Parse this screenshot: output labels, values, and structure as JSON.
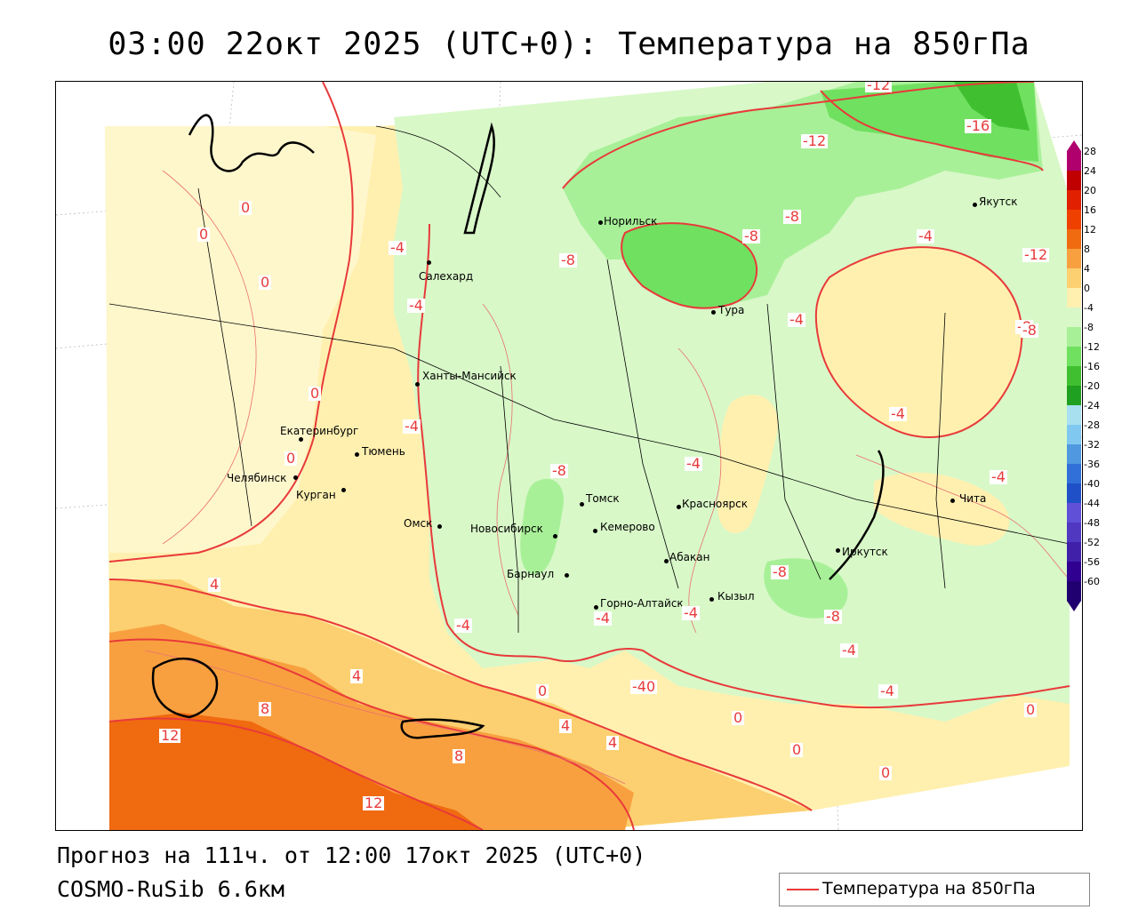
{
  "title": "03:00 22окт 2025 (UTC+0): Температура на 850гПа",
  "footer": {
    "forecast": "Прогноз на 111ч. от 12:00 17окт 2025 (UTC+0)",
    "model": "COSMO-RuSib 6.6км"
  },
  "legend": {
    "label": "Температура на 850гПа",
    "color": "#e83a3a"
  },
  "colorbar": {
    "labels": [
      "28",
      "24",
      "20",
      "16",
      "12",
      "8",
      "4",
      "0",
      "-4",
      "-8",
      "-12",
      "-16",
      "-20",
      "-24",
      "-28",
      "-32",
      "-36",
      "-40",
      "-44",
      "-48",
      "-52",
      "-56",
      "-60"
    ],
    "colors": [
      "#b0006e",
      "#c00000",
      "#e02000",
      "#f04000",
      "#f06a10",
      "#f8a040",
      "#fcd070",
      "#fff0b0",
      "#d8f8c8",
      "#a8f098",
      "#70e060",
      "#40c030",
      "#20a020",
      "#a8e0f0",
      "#80c8f0",
      "#5098e0",
      "#3070d8",
      "#2050c8",
      "#6050d8",
      "#5038c0",
      "#4020a8",
      "#300090",
      "#200070"
    ]
  },
  "cities": [
    {
      "name": "Норильск"
    },
    {
      "name": "Салехард"
    },
    {
      "name": "Тура"
    },
    {
      "name": "Якутск"
    },
    {
      "name": "Ханты-Мансийск"
    },
    {
      "name": "Екатеринбург"
    },
    {
      "name": "Тюмень"
    },
    {
      "name": "Челябинск"
    },
    {
      "name": "Курган"
    },
    {
      "name": "Омск"
    },
    {
      "name": "Томск"
    },
    {
      "name": "Новосибирск"
    },
    {
      "name": "Кемерово"
    },
    {
      "name": "Красноярск"
    },
    {
      "name": "Барнаул"
    },
    {
      "name": "Абакан"
    },
    {
      "name": "Кызыл"
    },
    {
      "name": "Горно-Алтайск"
    },
    {
      "name": "Иркутск"
    },
    {
      "name": "Чита"
    }
  ],
  "isolabels": [
    "-12",
    "-16",
    "-12",
    "-8",
    "-8",
    "-8",
    "-4",
    "-4",
    "-12",
    "0",
    "0",
    "0",
    "0",
    "0",
    "-4",
    "-4",
    "-8",
    "-4",
    "-4",
    "-4",
    "-4",
    "-8",
    "-4",
    "-4",
    "-4",
    "-8",
    "-4",
    "-4",
    "-40",
    "0",
    "0",
    "0",
    "4",
    "8",
    "12",
    "12",
    "8",
    "4",
    "4",
    "4",
    "0",
    "0",
    "-8",
    "-8",
    "-4"
  ]
}
